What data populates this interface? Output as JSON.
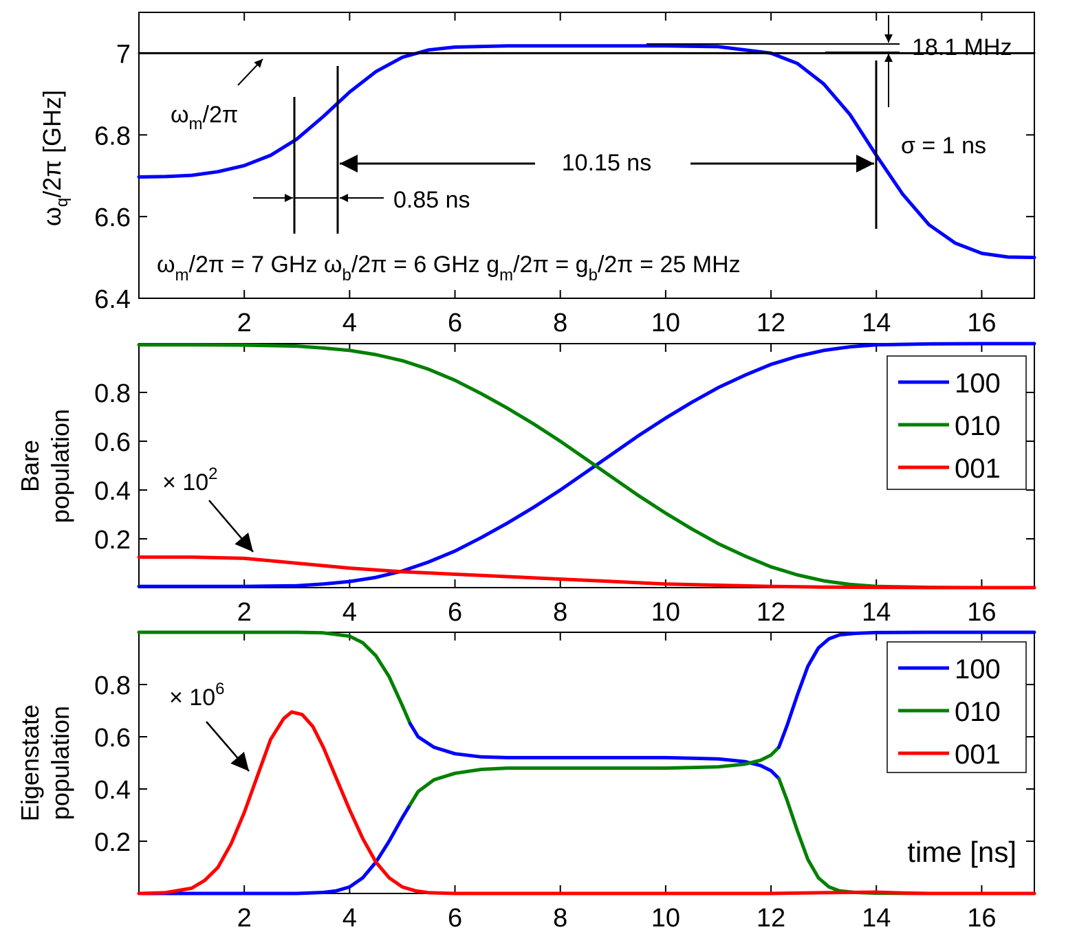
{
  "chart_data": [
    {
      "type": "line",
      "panel": "top",
      "ylabel_main": "ω",
      "ylabel_sub": "q",
      "ylabel_rest": "/2π [GHz]",
      "xlim": [
        0,
        17
      ],
      "ylim": [
        6.4,
        7.1
      ],
      "xticks": [
        "2",
        "4",
        "6",
        "8",
        "10",
        "12",
        "14",
        "16"
      ],
      "yticks": [
        "6.4",
        "6.6",
        "6.8",
        "7"
      ],
      "series": [
        {
          "name": "ω_q/2π",
          "color": "#0000ff",
          "x": [
            0,
            0.5,
            1,
            1.5,
            2,
            2.5,
            3,
            3.5,
            4,
            4.5,
            5,
            5.5,
            6,
            7,
            8,
            9,
            10,
            11,
            12,
            12.5,
            13,
            13.5,
            14,
            14.5,
            15,
            15.5,
            16,
            16.5,
            17
          ],
          "y": [
            6.697,
            6.698,
            6.701,
            6.71,
            6.725,
            6.75,
            6.79,
            6.845,
            6.905,
            6.955,
            6.99,
            7.008,
            7.015,
            7.018,
            7.018,
            7.018,
            7.018,
            7.016,
            7.0,
            6.975,
            6.925,
            6.85,
            6.75,
            6.655,
            6.58,
            6.535,
            6.51,
            6.501,
            6.5
          ]
        },
        {
          "name": "ω_m/2π",
          "color": "#000000",
          "x": [
            0,
            17
          ],
          "y": [
            7.0,
            7.0
          ]
        }
      ],
      "annotations": {
        "wm_label": "ω",
        "wm_sub": "m",
        "wm_rest": "/2π",
        "mhz_label": "18.1 MHz",
        "sigma_label": "σ = 1 ns",
        "span_label": "10.15 ns",
        "small_span_label": "0.85 ns",
        "params": [
          {
            "t": "ω"
          },
          {
            "t": "m",
            "sub": true
          },
          {
            "t": "/2π = 7 GHz ω"
          },
          {
            "t": "b",
            "sub": true
          },
          {
            "t": "/2π = 6 GHz g"
          },
          {
            "t": "m",
            "sub": true
          },
          {
            "t": "/2π = g"
          },
          {
            "t": "b",
            "sub": true
          },
          {
            "t": "/2π = 25 MHz"
          }
        ]
      }
    },
    {
      "type": "line",
      "panel": "middle",
      "ylabel_lines": [
        "Bare",
        "population"
      ],
      "xlim": [
        0,
        17
      ],
      "ylim": [
        0,
        1
      ],
      "xticks": [
        "2",
        "4",
        "6",
        "8",
        "10",
        "12",
        "14",
        "16"
      ],
      "yticks": [
        "0.2",
        "0.4",
        "0.6",
        "0.8"
      ],
      "legend": [
        "100",
        "010",
        "001"
      ],
      "legend_position": "top-right",
      "multiplier_label": "× 10",
      "multiplier_exp": "2",
      "series": [
        {
          "name": "100",
          "color": "#0000ff",
          "x": [
            0,
            1,
            2,
            3,
            3.5,
            4,
            4.5,
            5,
            5.5,
            6,
            6.5,
            7,
            7.5,
            8,
            8.5,
            9,
            9.5,
            10,
            10.5,
            11,
            11.5,
            12,
            12.5,
            13,
            13.5,
            14,
            15,
            16,
            17
          ],
          "y": [
            0.005,
            0.005,
            0.005,
            0.008,
            0.015,
            0.025,
            0.042,
            0.068,
            0.105,
            0.15,
            0.205,
            0.265,
            0.33,
            0.4,
            0.475,
            0.55,
            0.625,
            0.695,
            0.76,
            0.82,
            0.87,
            0.915,
            0.948,
            0.972,
            0.987,
            0.995,
            0.999,
            1.0,
            1.0
          ]
        },
        {
          "name": "010",
          "color": "#008000",
          "x": [
            0,
            1,
            2,
            3,
            3.5,
            4,
            4.5,
            5,
            5.5,
            6,
            6.5,
            7,
            7.5,
            8,
            8.5,
            9,
            9.5,
            10,
            10.5,
            11,
            11.5,
            12,
            12.5,
            13,
            13.5,
            14,
            15,
            16,
            17
          ],
          "y": [
            0.995,
            0.995,
            0.994,
            0.99,
            0.982,
            0.972,
            0.955,
            0.93,
            0.895,
            0.85,
            0.795,
            0.735,
            0.67,
            0.6,
            0.525,
            0.45,
            0.375,
            0.305,
            0.24,
            0.18,
            0.13,
            0.085,
            0.052,
            0.028,
            0.013,
            0.005,
            0.001,
            0.0,
            0.0
          ]
        },
        {
          "name": "001",
          "color": "#ff0000",
          "x": [
            0,
            1,
            2,
            3,
            4,
            5,
            6,
            7,
            8,
            9,
            10,
            11,
            12,
            13,
            14,
            15,
            16,
            17
          ],
          "y": [
            0.125,
            0.125,
            0.12,
            0.1,
            0.08,
            0.065,
            0.055,
            0.045,
            0.035,
            0.025,
            0.015,
            0.01,
            0.005,
            0.002,
            0.001,
            0.0,
            0.0,
            0.0
          ]
        }
      ]
    },
    {
      "type": "line",
      "panel": "bottom",
      "ylabel_lines": [
        "Eigenstate",
        "population"
      ],
      "xlabel": "time [ns]",
      "xlim": [
        0,
        17
      ],
      "ylim": [
        0,
        1
      ],
      "xticks": [
        "2",
        "4",
        "6",
        "8",
        "10",
        "12",
        "14",
        "16"
      ],
      "yticks": [
        "0.2",
        "0.4",
        "0.6",
        "0.8"
      ],
      "legend": [
        "100",
        "010",
        "001"
      ],
      "legend_position": "top-right",
      "multiplier_label": "× 10",
      "multiplier_exp": "6",
      "series": [
        {
          "name": "010",
          "color": "#008000",
          "x": [
            0,
            1,
            2,
            3,
            3.5,
            4,
            4.25,
            4.5,
            4.75,
            5,
            5.15
          ],
          "y": [
            1.0,
            1.0,
            1.0,
            1.0,
            0.998,
            0.985,
            0.96,
            0.91,
            0.83,
            0.72,
            0.65
          ]
        },
        {
          "name": "100",
          "color": "#0000ff",
          "x": [
            5.15,
            5.3,
            5.6,
            6,
            6.5,
            7,
            8,
            9,
            10,
            10.5,
            11,
            11.5,
            11.8,
            12,
            12.15
          ],
          "y": [
            0.65,
            0.6,
            0.56,
            0.535,
            0.523,
            0.52,
            0.52,
            0.52,
            0.52,
            0.518,
            0.515,
            0.505,
            0.49,
            0.47,
            0.44
          ]
        },
        {
          "name": "010",
          "color": "#008000",
          "x": [
            12.15,
            12.3,
            12.5,
            12.7,
            12.9,
            13.1,
            13.3,
            13.6,
            14,
            15,
            16,
            17
          ],
          "y": [
            0.44,
            0.36,
            0.24,
            0.13,
            0.06,
            0.025,
            0.01,
            0.004,
            0.001,
            0.0,
            0.0,
            0.0
          ]
        },
        {
          "name": "100",
          "color": "#0000ff",
          "x": [
            0,
            1,
            2,
            3,
            3.5,
            3.75,
            4,
            4.25,
            4.5,
            4.75,
            5,
            5.15
          ],
          "y": [
            0.0,
            0.0,
            0.0,
            0.0,
            0.004,
            0.01,
            0.025,
            0.06,
            0.12,
            0.2,
            0.29,
            0.34
          ]
        },
        {
          "name": "010",
          "color": "#008000",
          "x": [
            5.15,
            5.3,
            5.6,
            6,
            6.5,
            7,
            8,
            9,
            10,
            10.5,
            11,
            11.5,
            11.8,
            12,
            12.15
          ],
          "y": [
            0.34,
            0.39,
            0.435,
            0.46,
            0.475,
            0.48,
            0.48,
            0.48,
            0.48,
            0.482,
            0.485,
            0.495,
            0.51,
            0.53,
            0.56
          ]
        },
        {
          "name": "100",
          "color": "#0000ff",
          "x": [
            12.15,
            12.3,
            12.5,
            12.7,
            12.9,
            13.1,
            13.3,
            13.6,
            14,
            15,
            16,
            17
          ],
          "y": [
            0.56,
            0.64,
            0.76,
            0.87,
            0.94,
            0.975,
            0.99,
            0.996,
            0.999,
            1.0,
            1.0,
            1.0
          ]
        },
        {
          "name": "001",
          "color": "#ff0000",
          "x": [
            0,
            0.5,
            1,
            1.25,
            1.5,
            1.75,
            2,
            2.25,
            2.5,
            2.75,
            2.9,
            3.1,
            3.3,
            3.5,
            3.75,
            4,
            4.25,
            4.5,
            4.75,
            5,
            5.25,
            5.5,
            6,
            7,
            8,
            10,
            12,
            13,
            14,
            14.5,
            15,
            17
          ],
          "y": [
            0.0,
            0.003,
            0.02,
            0.05,
            0.1,
            0.19,
            0.31,
            0.45,
            0.59,
            0.67,
            0.695,
            0.685,
            0.64,
            0.56,
            0.44,
            0.32,
            0.21,
            0.12,
            0.06,
            0.025,
            0.01,
            0.003,
            0.0,
            0.0,
            0.0,
            0.0,
            0.0,
            0.003,
            0.005,
            0.002,
            0.0,
            0.0
          ]
        }
      ]
    }
  ]
}
